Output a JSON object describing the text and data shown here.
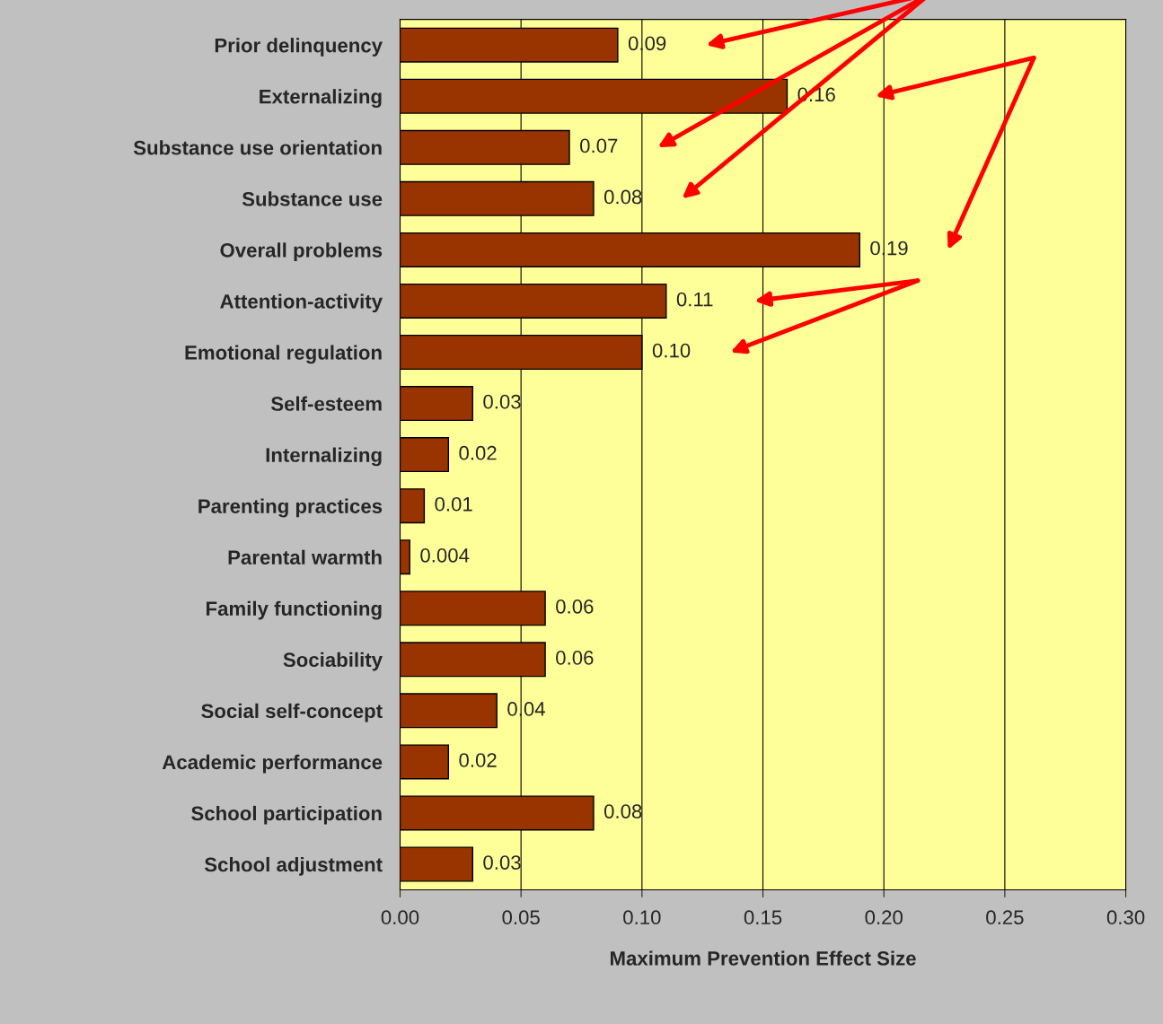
{
  "chart_data": {
    "type": "bar",
    "orientation": "horizontal",
    "xlabel": "Maximum Prevention Effect Size",
    "categories": [
      "Prior delinquency",
      "Externalizing",
      "Substance use orientation",
      "Substance use",
      "Overall problems",
      "Attention-activity",
      "Emotional regulation",
      "Self-esteem",
      "Internalizing",
      "Parenting practices",
      "Parental warmth",
      "Family functioning",
      "Sociability",
      "Social self-concept",
      "Academic performance",
      "School participation",
      "School adjustment"
    ],
    "values": [
      0.09,
      0.16,
      0.07,
      0.08,
      0.19,
      0.11,
      0.1,
      0.03,
      0.02,
      0.01,
      0.004,
      0.06,
      0.06,
      0.04,
      0.02,
      0.08,
      0.03
    ],
    "value_labels": [
      "0.09",
      "0.16",
      "0.07",
      "0.08",
      "0.19",
      "0.11",
      "0.10",
      "0.03",
      "0.02",
      "0.01",
      "0.004",
      "0.06",
      "0.06",
      "0.04",
      "0.02",
      "0.08",
      "0.03"
    ],
    "color": "#993300",
    "xlim": [
      0,
      0.3
    ],
    "xticks": [
      {
        "value": 0,
        "label": "0.00"
      },
      {
        "value": 0.05,
        "label": "0.05"
      },
      {
        "value": 0.1,
        "label": "0.10"
      },
      {
        "value": 0.15,
        "label": "0.15"
      },
      {
        "value": 0.2,
        "label": "0.20"
      },
      {
        "value": 0.25,
        "label": "0.25"
      },
      {
        "value": 0.3,
        "label": "0.30"
      }
    ],
    "grid": "x"
  }
}
